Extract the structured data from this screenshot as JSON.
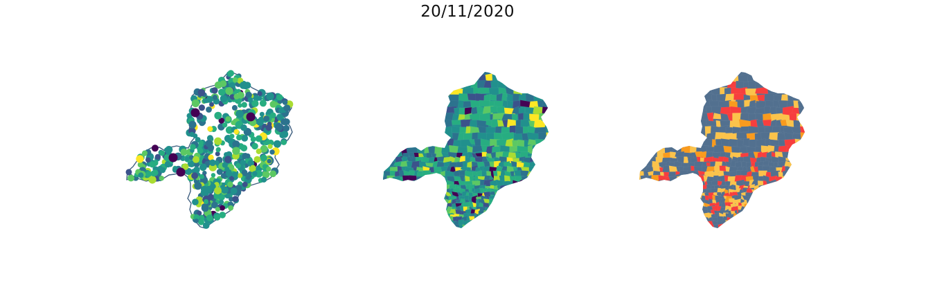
{
  "figure": {
    "title": "20/11/2020"
  },
  "palette": {
    "viridis": [
      "#440154",
      "#3b528b",
      "#2c728e",
      "#21908d",
      "#27ad81",
      "#5cc863",
      "#aadc32",
      "#fde725"
    ],
    "risk": [
      "#52708f",
      "#fbc34b",
      "#f99b1e",
      "#f73e3e"
    ],
    "outline": "#3f5f80"
  },
  "panels": [
    {
      "name": "bubble-map",
      "style": "scatter-on-outline"
    },
    {
      "name": "choropleth-viridis",
      "style": "choropleth"
    },
    {
      "name": "choropleth-risk",
      "style": "categorical-choropleth"
    }
  ]
}
